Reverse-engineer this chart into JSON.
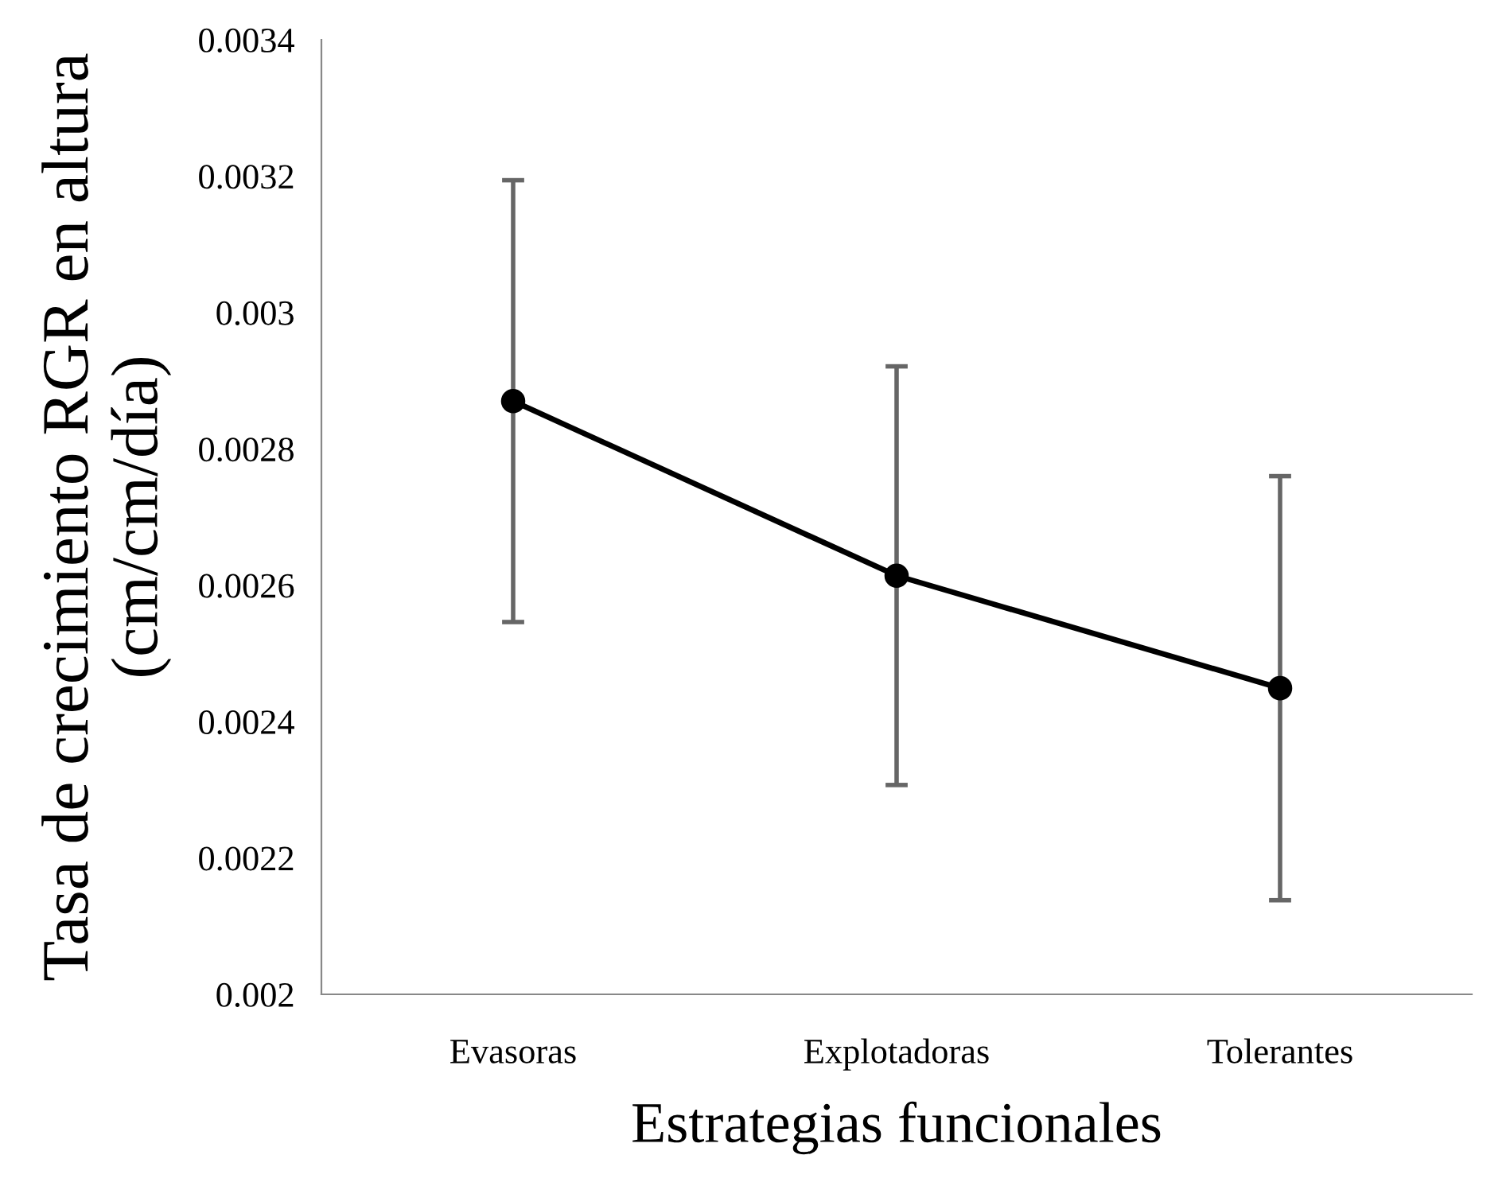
{
  "chart_data": {
    "type": "line",
    "xlabel": "Estrategias funcionales",
    "ylabel": "Tasa de crecimiento RGR en altura\n(cm/cm/día)",
    "categories": [
      "Evasoras",
      "Explotadoras",
      "Tolerantes"
    ],
    "series": [
      {
        "color": "#000000",
        "values": [
          0.00287,
          0.002614,
          0.002449
        ],
        "errors": [
          0.000324,
          0.000307,
          0.000311
        ]
      }
    ],
    "ylim": [
      0.002,
      0.0034
    ],
    "yticks": [
      0.002,
      0.0022,
      0.0024,
      0.0026,
      0.0028,
      0.003,
      0.0032,
      0.0034
    ],
    "marker": "circle",
    "line_style": "solid",
    "grid": false,
    "legend": false
  }
}
